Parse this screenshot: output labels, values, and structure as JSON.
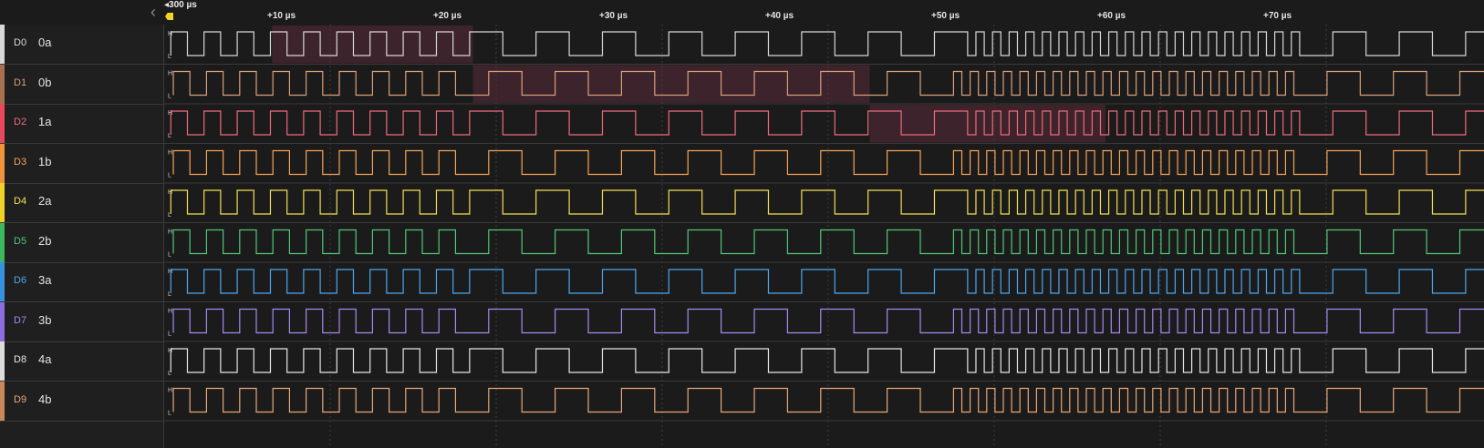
{
  "toolbar": {
    "collapse_icon": "chevron-left-icon",
    "start_marker_label": "300 µs",
    "start_marker_color": "#f3d327"
  },
  "timeline": {
    "ticks": [
      "+10 µs",
      "+20 µs",
      "+30 µs",
      "+40 µs",
      "+50 µs",
      "+60 µs",
      "+70 µs"
    ],
    "level_high_label": "H",
    "level_low_label": "L"
  },
  "channels": [
    {
      "id": "D0",
      "name": "0a",
      "color": "#d8d8d8",
      "accent": "#d8d8d8"
    },
    {
      "id": "D1",
      "name": "0b",
      "color": "#d9a07a",
      "accent": "#a87050"
    },
    {
      "id": "D2",
      "name": "1a",
      "color": "#ef6b7c",
      "accent": "#e8485e"
    },
    {
      "id": "D3",
      "name": "1b",
      "color": "#f5a454",
      "accent": "#f0943c"
    },
    {
      "id": "D4",
      "name": "2a",
      "color": "#f3e050",
      "accent": "#f0d227"
    },
    {
      "id": "D5",
      "name": "2b",
      "color": "#50c878",
      "accent": "#3bb75f"
    },
    {
      "id": "D6",
      "name": "3a",
      "color": "#4ea6f0",
      "accent": "#3790e0"
    },
    {
      "id": "D7",
      "name": "3b",
      "color": "#a58af0",
      "accent": "#8c6ee0"
    },
    {
      "id": "D8",
      "name": "4a",
      "color": "#e6e6e6",
      "accent": "#dcdcdc"
    },
    {
      "id": "D9",
      "name": "4b",
      "color": "#e8a878",
      "accent": "#c8885a"
    }
  ],
  "highlights": [
    {
      "channel": 0,
      "from_us": 6.5,
      "to_us": 18.6,
      "color": "#5a2a38"
    },
    {
      "channel": 1,
      "from_us": 18.6,
      "to_us": 42.5,
      "color": "#5a2a38"
    },
    {
      "channel": 2,
      "from_us": 42.5,
      "to_us": 56.7,
      "color": "#5a2a38"
    }
  ]
}
